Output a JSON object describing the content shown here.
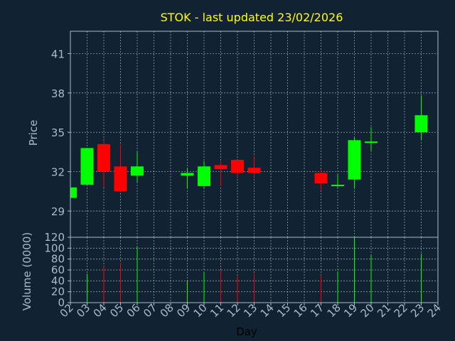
{
  "chart_data": {
    "type": "candlestick",
    "title": "STOK - last updated 23/02/2026",
    "xlabel": "Day",
    "colors": {
      "background": "#112233",
      "frame": "#AABBCC",
      "grid": "#AABBCC",
      "text": "#AABBCC",
      "title": "#FFFF00",
      "xlabel": "#000000",
      "up": "#00FF00",
      "down": "#FF0000"
    },
    "x_tick_labels": [
      "02",
      "03",
      "04",
      "05",
      "06",
      "07",
      "08",
      "09",
      "10",
      "11",
      "12",
      "13",
      "14",
      "15",
      "16",
      "17",
      "18",
      "19",
      "20",
      "21",
      "22",
      "23",
      "24"
    ],
    "price_panel": {
      "ylabel": "Price",
      "ylim": [
        27.0,
        42.7
      ],
      "yticks": [
        29,
        32,
        35,
        38,
        41
      ],
      "grid": true
    },
    "volume_panel": {
      "ylabel": "Volume (0000)",
      "ylim": [
        0,
        120
      ],
      "yticks": [
        0,
        20,
        40,
        60,
        80,
        100,
        120
      ],
      "grid": true
    },
    "candles": [
      {
        "day": "02",
        "open": 30.0,
        "high": 30.8,
        "low": 29.9,
        "close": 30.8,
        "volume": 0
      },
      {
        "day": "03",
        "open": 31.0,
        "high": 33.8,
        "low": 31.0,
        "close": 33.8,
        "volume": 53
      },
      {
        "day": "04",
        "open": 34.1,
        "high": 34.3,
        "low": 30.8,
        "close": 32.0,
        "volume": 67
      },
      {
        "day": "05",
        "open": 32.4,
        "high": 34.1,
        "low": 30.4,
        "close": 30.5,
        "volume": 73
      },
      {
        "day": "06",
        "open": 31.7,
        "high": 33.5,
        "low": 31.2,
        "close": 32.4,
        "volume": 103
      },
      {
        "day": "09",
        "open": 31.7,
        "high": 32.3,
        "low": 30.7,
        "close": 31.9,
        "volume": 41
      },
      {
        "day": "10",
        "open": 30.9,
        "high": 32.8,
        "low": 30.7,
        "close": 32.4,
        "volume": 55
      },
      {
        "day": "11",
        "open": 32.5,
        "high": 32.8,
        "low": 30.9,
        "close": 32.2,
        "volume": 60
      },
      {
        "day": "12",
        "open": 32.9,
        "high": 32.9,
        "low": 31.6,
        "close": 31.9,
        "volume": 49
      },
      {
        "day": "13",
        "open": 32.3,
        "high": 33.2,
        "low": 31.6,
        "close": 31.9,
        "volume": 54
      },
      {
        "day": "17",
        "open": 31.9,
        "high": 32.2,
        "low": 30.6,
        "close": 31.1,
        "volume": 51
      },
      {
        "day": "18",
        "open": 30.9,
        "high": 31.8,
        "low": 30.8,
        "close": 31.0,
        "volume": 57
      },
      {
        "day": "19",
        "open": 31.4,
        "high": 34.6,
        "low": 30.7,
        "close": 34.4,
        "volume": 121
      },
      {
        "day": "20",
        "open": 34.2,
        "high": 35.4,
        "low": 33.6,
        "close": 34.3,
        "volume": 88
      },
      {
        "day": "23",
        "open": 35.0,
        "high": 37.8,
        "low": 34.4,
        "close": 36.3,
        "volume": 90
      }
    ]
  }
}
